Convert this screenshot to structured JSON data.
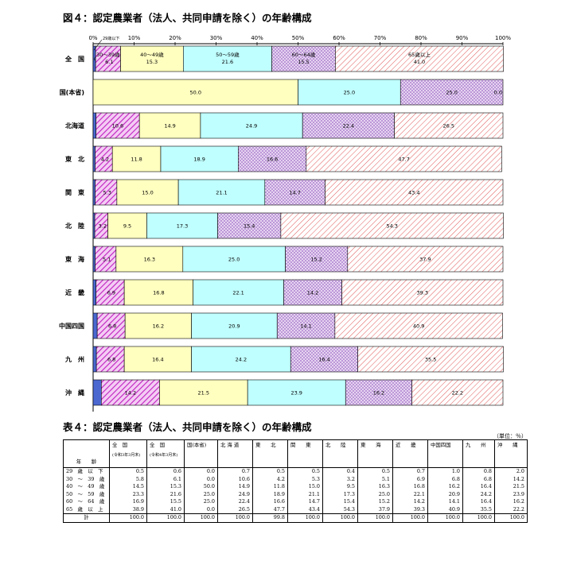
{
  "figure_title": "図４：認定農業者（法人、共同申請を除く）の年齢構成",
  "table_title": "表４：認定農業者（法人、共同申請を除く）の年齢構成",
  "unit_label": "（単位：％）",
  "chart_data": {
    "type": "bar",
    "orientation": "horizontal",
    "stacked": true,
    "percent": true,
    "xlim": [
      0,
      100
    ],
    "x_ticks": [
      "0%",
      "10%",
      "20%",
      "30%",
      "40%",
      "50%",
      "60%",
      "70%",
      "80%",
      "90%",
      "100%"
    ],
    "categories": [
      "全　国",
      "国(本省)",
      "北海道",
      "東　北",
      "関　東",
      "北　陸",
      "東　海",
      "近　畿",
      "中国四国",
      "九　州",
      "沖　縄"
    ],
    "series": [
      {
        "name": "29歳以下",
        "color": "#4a68d0",
        "values": [
          0.6,
          0.0,
          0.7,
          0.5,
          0.5,
          0.4,
          0.5,
          0.7,
          1.0,
          0.8,
          2.0
        ]
      },
      {
        "name": "30～39歳",
        "color": "#d040d0",
        "values": [
          6.1,
          0.0,
          10.6,
          4.2,
          5.3,
          3.2,
          5.1,
          6.9,
          6.8,
          6.8,
          14.2
        ]
      },
      {
        "name": "40～49歳",
        "color": "#ffffc0",
        "values": [
          15.3,
          50.0,
          14.9,
          11.8,
          15.0,
          9.5,
          16.3,
          16.8,
          16.2,
          16.4,
          21.5
        ]
      },
      {
        "name": "50～59歳",
        "color": "#c0ffff",
        "values": [
          21.6,
          25.0,
          24.9,
          18.9,
          21.1,
          17.3,
          25.0,
          22.1,
          20.9,
          24.2,
          23.9
        ]
      },
      {
        "name": "60～64歳",
        "color": "#d8b4e8",
        "values": [
          15.5,
          25.0,
          22.4,
          16.6,
          14.7,
          15.4,
          15.2,
          14.2,
          14.1,
          16.4,
          16.2
        ]
      },
      {
        "name": "65歳以上",
        "color": "#ffd0d0",
        "values": [
          41.0,
          0.0,
          26.5,
          47.7,
          43.4,
          54.3,
          37.9,
          39.3,
          40.9,
          35.5,
          22.2
        ]
      }
    ],
    "label_texts": [
      [
        "0.6",
        "6.1",
        "15.3",
        "21.6",
        "15.5",
        "41.0"
      ],
      [
        "0.0",
        "",
        "50.0",
        "25.0",
        "25.0",
        "0.0"
      ],
      [
        "0.7",
        "10.6",
        "14.9",
        "24.9",
        "22.4",
        "26.5"
      ],
      [
        "0.5",
        "4.2",
        "11.8",
        "18.9",
        "16.6",
        "47.7"
      ],
      [
        "0.5",
        "5.3",
        "15.0",
        "21.1",
        "14.7",
        "43.4"
      ],
      [
        "0.4",
        "3.2",
        "9.5",
        "17.3",
        "15.4",
        "54.3"
      ],
      [
        "0.5",
        "5.1",
        "16.3",
        "25.0",
        "15.2",
        "37.9"
      ],
      [
        "0.7",
        "6.9",
        "16.8",
        "22.1",
        "14.2",
        "39.3"
      ],
      [
        "1.0",
        "6.8",
        "16.2",
        "20.9",
        "14.1",
        "40.9"
      ],
      [
        "0.8",
        "6.8",
        "16.4",
        "24.2",
        "16.4",
        "35.5"
      ],
      [
        "2.0",
        "14.2",
        "21.5",
        "23.9",
        "16.2",
        "22.2"
      ]
    ],
    "first_row_series_labels": [
      "29歳以下",
      "30～39歳",
      "40～49歳",
      "50～59歳",
      "60～64歳",
      "65歳以上"
    ]
  },
  "table": {
    "header_label_col": "年　　齢",
    "columns": [
      {
        "name": "全　国",
        "sub": "(令和3年3月末)"
      },
      {
        "name": "全　国",
        "sub": "(令和4年3月末)"
      },
      {
        "name": "国(本省)",
        "sub": ""
      },
      {
        "name": "北 海 道",
        "sub": ""
      },
      {
        "name": "東　　北",
        "sub": ""
      },
      {
        "name": "関　　東",
        "sub": ""
      },
      {
        "name": "北　　陸",
        "sub": ""
      },
      {
        "name": "東　　海",
        "sub": ""
      },
      {
        "name": "近　　畿",
        "sub": ""
      },
      {
        "name": "中国四国",
        "sub": ""
      },
      {
        "name": "九　　州",
        "sub": ""
      },
      {
        "name": "沖　　縄",
        "sub": ""
      }
    ],
    "rows": [
      {
        "label": "29　歳　以　下",
        "values": [
          "0.5",
          "0.6",
          "0.0",
          "0.7",
          "0.5",
          "0.5",
          "0.4",
          "0.5",
          "0.7",
          "1.0",
          "0.8",
          "2.0"
        ]
      },
      {
        "label": "30　～　39　歳",
        "values": [
          "5.8",
          "6.1",
          "0.0",
          "10.6",
          "4.2",
          "5.3",
          "3.2",
          "5.1",
          "6.9",
          "6.8",
          "6.8",
          "14.2"
        ]
      },
      {
        "label": "40　～　49　歳",
        "values": [
          "14.5",
          "15.3",
          "50.0",
          "14.9",
          "11.8",
          "15.0",
          "9.5",
          "16.3",
          "16.8",
          "16.2",
          "16.4",
          "21.5"
        ]
      },
      {
        "label": "50　～　59　歳",
        "values": [
          "23.3",
          "21.6",
          "25.0",
          "24.9",
          "18.9",
          "21.1",
          "17.3",
          "25.0",
          "22.1",
          "20.9",
          "24.2",
          "23.9"
        ]
      },
      {
        "label": "60　～　64　歳",
        "values": [
          "16.9",
          "15.5",
          "25.0",
          "22.4",
          "16.6",
          "14.7",
          "15.4",
          "15.2",
          "14.2",
          "14.1",
          "16.4",
          "16.2"
        ]
      },
      {
        "label": "65　歳　以　上",
        "values": [
          "38.9",
          "41.0",
          "0.0",
          "26.5",
          "47.7",
          "43.4",
          "54.3",
          "37.9",
          "39.3",
          "40.9",
          "35.5",
          "22.2"
        ]
      }
    ],
    "total": {
      "label": "計",
      "values": [
        "100.0",
        "100.0",
        "100.0",
        "100.0",
        "99.8",
        "100.0",
        "100.0",
        "100.0",
        "100.0",
        "100.0",
        "100.0",
        "100.0"
      ]
    }
  }
}
